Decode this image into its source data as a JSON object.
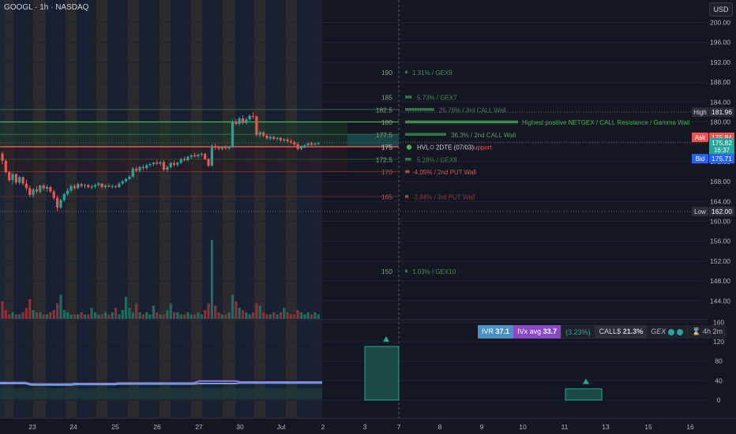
{
  "header": {
    "title": "GOOGL · 1h · NASDAQ",
    "currency": "USD"
  },
  "price_axis": {
    "ticks": [
      "200.00",
      "196.00",
      "192.00",
      "188.00",
      "184.00",
      "180.00",
      "176.00",
      "172.00",
      "168.00",
      "164.00",
      "160.00",
      "156.00",
      "152.00",
      "148.00",
      "144.00"
    ]
  },
  "price_tags": {
    "high_label": "High",
    "high_value": "181.96",
    "ask_label": "Ask",
    "ask_value": "175.84",
    "last_value": "175.82",
    "countdown": "16:37",
    "bid_label": "Bid",
    "bid_value": "175.71",
    "low_label": "Low",
    "low_value": "162.00"
  },
  "strike_levels": [
    "190",
    "185",
    "182.5",
    "180",
    "177.5",
    "175",
    "172.5",
    "170",
    "165",
    "150"
  ],
  "gex_labels": {
    "l190": "1.31% / GEX9",
    "l185": "5.73% / GEX7",
    "l1825": "25.79% / 3rd CALL Wall",
    "l180": "Highest positive NETGEX / CALL Resistance / Gamma Wall",
    "l1775": "36.3% / 2nd CALL Wall",
    "hvl": "HVL",
    "expiry": "2DTE (07/03)",
    "support": "upport",
    "l1725": "5.28% / GEX8",
    "l170": "-4.05% / 2nd PUT Wall",
    "l165": "-2.84% / 3rd PUT Wall",
    "l150": "1.03% / GEX10"
  },
  "oscillator_axis": {
    "ticks": [
      "160",
      "120",
      "80",
      "40",
      "0"
    ]
  },
  "time_axis": {
    "labels": [
      "23",
      "24",
      "25",
      "26",
      "27",
      "30",
      "Jul",
      "2",
      "3",
      "7",
      "8",
      "9",
      "10",
      "11",
      "13",
      "15",
      "16"
    ]
  },
  "stats": {
    "ivr_label": "IVR",
    "ivr_value": "37.1",
    "ivx_label": "IVx avg",
    "ivx_value": "33.7",
    "change": "(3.23%)",
    "calls_label": "CALL$",
    "calls_value": "21.3%",
    "gex_label": "GEX",
    "timer": "4h 2m"
  },
  "colors": {
    "up": "#26a69a",
    "down": "#ef5350",
    "gex_green": "#4caf50",
    "background": "#131722"
  },
  "chart_data": {
    "type": "candlestick",
    "ylim": [
      142,
      202
    ],
    "hourly_ohlc": [
      [
        173.6,
        174.0,
        171.5,
        172.2
      ],
      [
        172.2,
        172.4,
        169.7,
        169.9
      ],
      [
        169.9,
        170.2,
        167.9,
        168.3
      ],
      [
        168.3,
        169.8,
        167.5,
        169.5
      ],
      [
        169.5,
        169.6,
        167.4,
        167.8
      ],
      [
        167.8,
        169.1,
        167.3,
        168.9
      ],
      [
        168.9,
        169.0,
        167.2,
        167.6
      ],
      [
        167.6,
        168.4,
        166.2,
        166.7
      ],
      [
        166.7,
        167.2,
        164.9,
        165.3
      ],
      [
        165.3,
        166.7,
        164.8,
        166.4
      ],
      [
        166.4,
        167.0,
        165.6,
        166.0
      ],
      [
        166.0,
        167.4,
        165.6,
        167.2
      ],
      [
        167.2,
        167.6,
        166.2,
        166.6
      ],
      [
        166.6,
        167.3,
        165.9,
        166.9
      ],
      [
        166.9,
        167.1,
        165.7,
        166.0
      ],
      [
        166.0,
        166.4,
        164.3,
        164.7
      ],
      [
        164.7,
        165.2,
        162.0,
        162.8
      ],
      [
        162.8,
        164.6,
        162.5,
        164.3
      ],
      [
        164.3,
        165.8,
        163.9,
        165.5
      ],
      [
        165.5,
        166.6,
        165.1,
        166.2
      ],
      [
        166.2,
        167.4,
        165.9,
        167.1
      ],
      [
        167.1,
        167.5,
        166.3,
        166.7
      ],
      [
        166.7,
        167.8,
        166.4,
        167.5
      ],
      [
        167.5,
        167.7,
        166.8,
        167.1
      ],
      [
        167.1,
        167.6,
        166.6,
        167.3
      ],
      [
        167.3,
        167.5,
        166.6,
        166.9
      ],
      [
        166.9,
        167.4,
        166.4,
        167.0
      ],
      [
        167.0,
        167.6,
        166.6,
        167.3
      ],
      [
        167.3,
        167.9,
        167.0,
        167.6
      ],
      [
        167.6,
        167.7,
        166.5,
        166.9
      ],
      [
        166.9,
        167.5,
        166.5,
        167.2
      ],
      [
        167.2,
        167.6,
        166.8,
        167.0
      ],
      [
        167.0,
        167.4,
        166.6,
        167.1
      ],
      [
        167.1,
        167.3,
        166.7,
        166.9
      ],
      [
        166.9,
        167.9,
        166.7,
        167.6
      ],
      [
        167.6,
        168.3,
        167.3,
        168.1
      ],
      [
        168.1,
        168.8,
        167.8,
        168.5
      ],
      [
        168.5,
        169.2,
        168.3,
        169.0
      ],
      [
        169.0,
        170.9,
        168.8,
        170.6
      ],
      [
        170.6,
        171.0,
        169.9,
        170.2
      ],
      [
        170.2,
        171.2,
        169.8,
        170.9
      ],
      [
        170.9,
        171.4,
        170.3,
        170.7
      ],
      [
        170.7,
        171.6,
        170.3,
        171.3
      ],
      [
        171.3,
        171.8,
        170.9,
        171.5
      ],
      [
        171.5,
        172.0,
        171.1,
        171.8
      ],
      [
        171.8,
        172.3,
        171.3,
        171.6
      ],
      [
        171.6,
        172.2,
        171.2,
        171.9
      ],
      [
        171.9,
        172.3,
        170.1,
        170.4
      ],
      [
        170.4,
        171.2,
        169.9,
        170.9
      ],
      [
        170.9,
        172.0,
        170.6,
        171.7
      ],
      [
        171.7,
        172.2,
        171.0,
        171.4
      ],
      [
        171.4,
        172.0,
        171.0,
        171.8
      ],
      [
        171.8,
        172.8,
        171.5,
        172.5
      ],
      [
        172.5,
        173.0,
        172.0,
        172.3
      ],
      [
        172.3,
        173.2,
        172.1,
        173.0
      ],
      [
        173.0,
        173.5,
        172.6,
        173.3
      ],
      [
        173.3,
        173.8,
        172.9,
        173.1
      ],
      [
        173.1,
        173.6,
        172.7,
        173.4
      ],
      [
        173.4,
        173.9,
        173.0,
        173.6
      ],
      [
        173.6,
        173.8,
        172.3,
        172.5
      ],
      [
        172.5,
        172.8,
        170.9,
        171.2
      ],
      [
        171.2,
        175.5,
        171.0,
        175.0
      ],
      [
        175.0,
        175.6,
        174.4,
        174.8
      ],
      [
        174.8,
        175.2,
        174.3,
        174.6
      ],
      [
        174.6,
        175.1,
        174.2,
        174.9
      ],
      [
        174.9,
        175.3,
        174.4,
        174.7
      ],
      [
        174.7,
        175.2,
        174.3,
        175.0
      ],
      [
        175.0,
        180.5,
        174.8,
        179.9
      ],
      [
        179.9,
        180.6,
        179.3,
        179.6
      ],
      [
        179.6,
        181.0,
        179.2,
        180.7
      ],
      [
        180.7,
        181.3,
        179.5,
        179.8
      ],
      [
        179.8,
        180.9,
        179.5,
        180.5
      ],
      [
        180.5,
        181.5,
        180.2,
        181.2
      ],
      [
        181.2,
        181.96,
        180.6,
        181.1
      ],
      [
        181.1,
        181.3,
        177.0,
        177.4
      ],
      [
        177.4,
        178.2,
        176.8,
        177.9
      ],
      [
        177.9,
        178.1,
        176.9,
        177.2
      ],
      [
        177.2,
        177.6,
        176.4,
        176.7
      ],
      [
        176.7,
        177.3,
        176.3,
        177.0
      ],
      [
        177.0,
        177.2,
        176.3,
        176.6
      ],
      [
        176.6,
        177.0,
        176.2,
        176.8
      ],
      [
        176.8,
        177.0,
        176.0,
        176.3
      ],
      [
        176.3,
        176.7,
        175.9,
        176.5
      ],
      [
        176.5,
        176.8,
        175.8,
        176.1
      ],
      [
        176.1,
        176.5,
        175.6,
        175.9
      ],
      [
        175.9,
        176.2,
        175.2,
        175.5
      ],
      [
        175.5,
        175.9,
        174.2,
        174.6
      ],
      [
        174.6,
        175.3,
        174.3,
        175.1
      ],
      [
        175.1,
        175.5,
        174.7,
        175.3
      ],
      [
        175.3,
        175.9,
        175.0,
        175.7
      ],
      [
        175.7,
        176.0,
        175.2,
        175.4
      ],
      [
        175.4,
        175.9,
        175.2,
        175.6
      ],
      [
        175.6,
        175.9,
        175.3,
        175.8
      ]
    ],
    "gex_strikes": [
      {
        "strike": 190,
        "pct": 1.31
      },
      {
        "strike": 185,
        "pct": 5.73
      },
      {
        "strike": 182.5,
        "pct": 25.79
      },
      {
        "strike": 180,
        "pct": 100
      },
      {
        "strike": 177.5,
        "pct": 36.3
      },
      {
        "strike": 172.5,
        "pct": 5.28
      },
      {
        "strike": 170,
        "pct": -4.05
      },
      {
        "strike": 165,
        "pct": -2.84
      },
      {
        "strike": 150,
        "pct": 1.03
      }
    ],
    "oscillator": {
      "ylim": [
        -10,
        170
      ],
      "iv_line": 34,
      "ivx_line": 36,
      "future_bars": [
        110,
        23
      ]
    }
  }
}
